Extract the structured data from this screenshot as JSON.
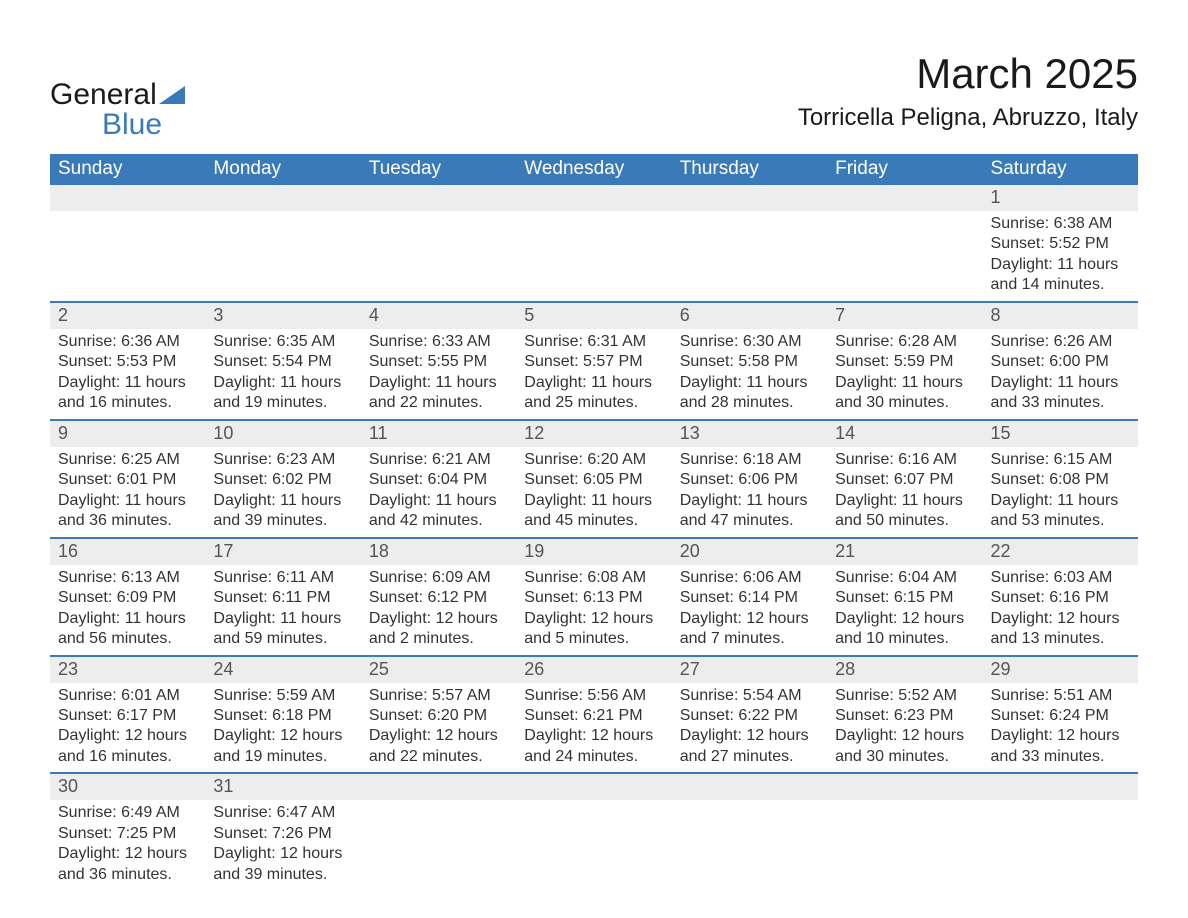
{
  "brand": {
    "part1": "General",
    "part2": "Blue"
  },
  "title": "March 2025",
  "location": "Torricella Peligna, Abruzzo, Italy",
  "colors": {
    "header_bg": "#3a7ab8",
    "header_text": "#ffffff",
    "daynum_bg": "#ededed",
    "row_border": "#3a7ab8",
    "text": "#333333",
    "background": "#ffffff"
  },
  "typography": {
    "title_fontsize": 42,
    "location_fontsize": 24,
    "header_fontsize": 19,
    "daynum_fontsize": 18,
    "body_fontsize": 16
  },
  "weekdays": [
    "Sunday",
    "Monday",
    "Tuesday",
    "Wednesday",
    "Thursday",
    "Friday",
    "Saturday"
  ],
  "weeks": [
    [
      null,
      null,
      null,
      null,
      null,
      null,
      {
        "n": "1",
        "sunrise": "Sunrise: 6:38 AM",
        "sunset": "Sunset: 5:52 PM",
        "day1": "Daylight: 11 hours",
        "day2": "and 14 minutes."
      }
    ],
    [
      {
        "n": "2",
        "sunrise": "Sunrise: 6:36 AM",
        "sunset": "Sunset: 5:53 PM",
        "day1": "Daylight: 11 hours",
        "day2": "and 16 minutes."
      },
      {
        "n": "3",
        "sunrise": "Sunrise: 6:35 AM",
        "sunset": "Sunset: 5:54 PM",
        "day1": "Daylight: 11 hours",
        "day2": "and 19 minutes."
      },
      {
        "n": "4",
        "sunrise": "Sunrise: 6:33 AM",
        "sunset": "Sunset: 5:55 PM",
        "day1": "Daylight: 11 hours",
        "day2": "and 22 minutes."
      },
      {
        "n": "5",
        "sunrise": "Sunrise: 6:31 AM",
        "sunset": "Sunset: 5:57 PM",
        "day1": "Daylight: 11 hours",
        "day2": "and 25 minutes."
      },
      {
        "n": "6",
        "sunrise": "Sunrise: 6:30 AM",
        "sunset": "Sunset: 5:58 PM",
        "day1": "Daylight: 11 hours",
        "day2": "and 28 minutes."
      },
      {
        "n": "7",
        "sunrise": "Sunrise: 6:28 AM",
        "sunset": "Sunset: 5:59 PM",
        "day1": "Daylight: 11 hours",
        "day2": "and 30 minutes."
      },
      {
        "n": "8",
        "sunrise": "Sunrise: 6:26 AM",
        "sunset": "Sunset: 6:00 PM",
        "day1": "Daylight: 11 hours",
        "day2": "and 33 minutes."
      }
    ],
    [
      {
        "n": "9",
        "sunrise": "Sunrise: 6:25 AM",
        "sunset": "Sunset: 6:01 PM",
        "day1": "Daylight: 11 hours",
        "day2": "and 36 minutes."
      },
      {
        "n": "10",
        "sunrise": "Sunrise: 6:23 AM",
        "sunset": "Sunset: 6:02 PM",
        "day1": "Daylight: 11 hours",
        "day2": "and 39 minutes."
      },
      {
        "n": "11",
        "sunrise": "Sunrise: 6:21 AM",
        "sunset": "Sunset: 6:04 PM",
        "day1": "Daylight: 11 hours",
        "day2": "and 42 minutes."
      },
      {
        "n": "12",
        "sunrise": "Sunrise: 6:20 AM",
        "sunset": "Sunset: 6:05 PM",
        "day1": "Daylight: 11 hours",
        "day2": "and 45 minutes."
      },
      {
        "n": "13",
        "sunrise": "Sunrise: 6:18 AM",
        "sunset": "Sunset: 6:06 PM",
        "day1": "Daylight: 11 hours",
        "day2": "and 47 minutes."
      },
      {
        "n": "14",
        "sunrise": "Sunrise: 6:16 AM",
        "sunset": "Sunset: 6:07 PM",
        "day1": "Daylight: 11 hours",
        "day2": "and 50 minutes."
      },
      {
        "n": "15",
        "sunrise": "Sunrise: 6:15 AM",
        "sunset": "Sunset: 6:08 PM",
        "day1": "Daylight: 11 hours",
        "day2": "and 53 minutes."
      }
    ],
    [
      {
        "n": "16",
        "sunrise": "Sunrise: 6:13 AM",
        "sunset": "Sunset: 6:09 PM",
        "day1": "Daylight: 11 hours",
        "day2": "and 56 minutes."
      },
      {
        "n": "17",
        "sunrise": "Sunrise: 6:11 AM",
        "sunset": "Sunset: 6:11 PM",
        "day1": "Daylight: 11 hours",
        "day2": "and 59 minutes."
      },
      {
        "n": "18",
        "sunrise": "Sunrise: 6:09 AM",
        "sunset": "Sunset: 6:12 PM",
        "day1": "Daylight: 12 hours",
        "day2": "and 2 minutes."
      },
      {
        "n": "19",
        "sunrise": "Sunrise: 6:08 AM",
        "sunset": "Sunset: 6:13 PM",
        "day1": "Daylight: 12 hours",
        "day2": "and 5 minutes."
      },
      {
        "n": "20",
        "sunrise": "Sunrise: 6:06 AM",
        "sunset": "Sunset: 6:14 PM",
        "day1": "Daylight: 12 hours",
        "day2": "and 7 minutes."
      },
      {
        "n": "21",
        "sunrise": "Sunrise: 6:04 AM",
        "sunset": "Sunset: 6:15 PM",
        "day1": "Daylight: 12 hours",
        "day2": "and 10 minutes."
      },
      {
        "n": "22",
        "sunrise": "Sunrise: 6:03 AM",
        "sunset": "Sunset: 6:16 PM",
        "day1": "Daylight: 12 hours",
        "day2": "and 13 minutes."
      }
    ],
    [
      {
        "n": "23",
        "sunrise": "Sunrise: 6:01 AM",
        "sunset": "Sunset: 6:17 PM",
        "day1": "Daylight: 12 hours",
        "day2": "and 16 minutes."
      },
      {
        "n": "24",
        "sunrise": "Sunrise: 5:59 AM",
        "sunset": "Sunset: 6:18 PM",
        "day1": "Daylight: 12 hours",
        "day2": "and 19 minutes."
      },
      {
        "n": "25",
        "sunrise": "Sunrise: 5:57 AM",
        "sunset": "Sunset: 6:20 PM",
        "day1": "Daylight: 12 hours",
        "day2": "and 22 minutes."
      },
      {
        "n": "26",
        "sunrise": "Sunrise: 5:56 AM",
        "sunset": "Sunset: 6:21 PM",
        "day1": "Daylight: 12 hours",
        "day2": "and 24 minutes."
      },
      {
        "n": "27",
        "sunrise": "Sunrise: 5:54 AM",
        "sunset": "Sunset: 6:22 PM",
        "day1": "Daylight: 12 hours",
        "day2": "and 27 minutes."
      },
      {
        "n": "28",
        "sunrise": "Sunrise: 5:52 AM",
        "sunset": "Sunset: 6:23 PM",
        "day1": "Daylight: 12 hours",
        "day2": "and 30 minutes."
      },
      {
        "n": "29",
        "sunrise": "Sunrise: 5:51 AM",
        "sunset": "Sunset: 6:24 PM",
        "day1": "Daylight: 12 hours",
        "day2": "and 33 minutes."
      }
    ],
    [
      {
        "n": "30",
        "sunrise": "Sunrise: 6:49 AM",
        "sunset": "Sunset: 7:25 PM",
        "day1": "Daylight: 12 hours",
        "day2": "and 36 minutes."
      },
      {
        "n": "31",
        "sunrise": "Sunrise: 6:47 AM",
        "sunset": "Sunset: 7:26 PM",
        "day1": "Daylight: 12 hours",
        "day2": "and 39 minutes."
      },
      null,
      null,
      null,
      null,
      null
    ]
  ]
}
